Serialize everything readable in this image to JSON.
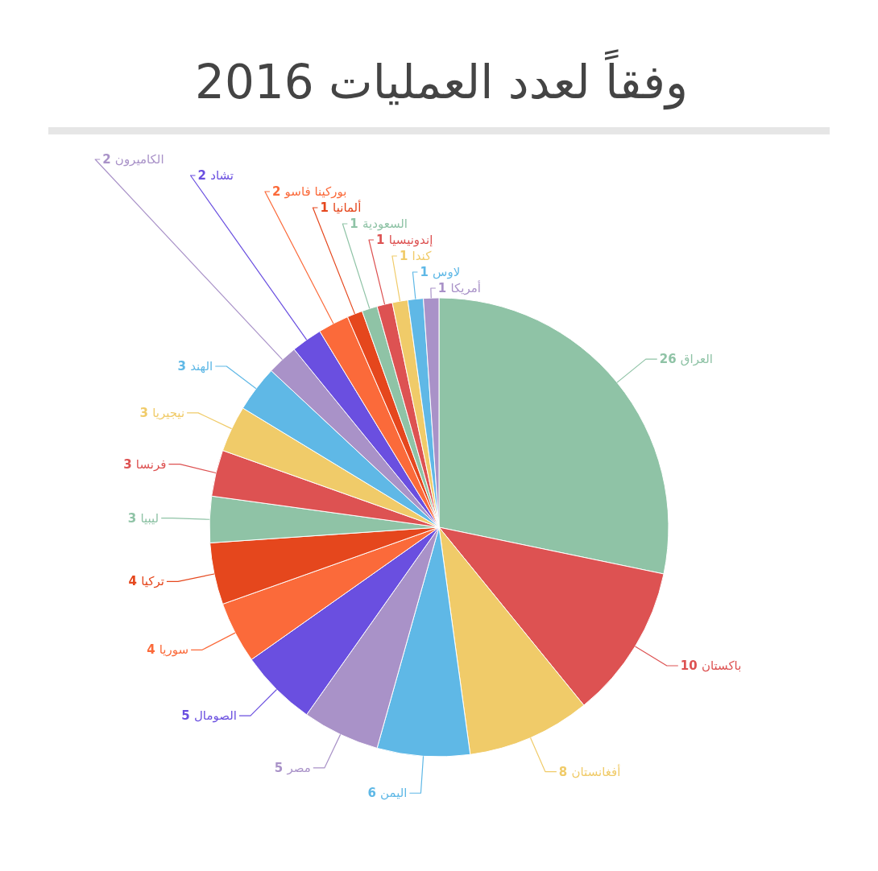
{
  "chart_data": {
    "type": "pie",
    "title": "وفقاً لعدد العمليات 2016",
    "categories": [
      "العراق",
      "باكستان",
      "أفغانستان",
      "اليمن",
      "مصر",
      "الصومال",
      "سوريا",
      "تركيا",
      "ليبيا",
      "فرنسا",
      "نيجيريا",
      "الهند",
      "الكاميرون",
      "تشاد",
      "بوركينا فاسو",
      "ألمانيا",
      "السعودية",
      "إندونيسيا",
      "كندا",
      "لاوس",
      "أمريكا"
    ],
    "values": [
      26,
      10,
      8,
      6,
      5,
      5,
      4,
      4,
      3,
      3,
      3,
      3,
      2,
      2,
      2,
      1,
      1,
      1,
      1,
      1,
      1
    ],
    "colors": [
      "#8fc3a6",
      "#dd5252",
      "#f0cb69",
      "#5fb8e6",
      "#a992c8",
      "#6a4fe0",
      "#fb6a3a",
      "#e5471d",
      "#8fc3a6",
      "#dd5252",
      "#f0cb69",
      "#5fb8e6",
      "#a992c8",
      "#6a4fe0",
      "#fb6a3a",
      "#e5471d",
      "#8fc3a6",
      "#dd5252",
      "#f0cb69",
      "#5fb8e6",
      "#a992c8"
    ],
    "data_labels": true
  }
}
